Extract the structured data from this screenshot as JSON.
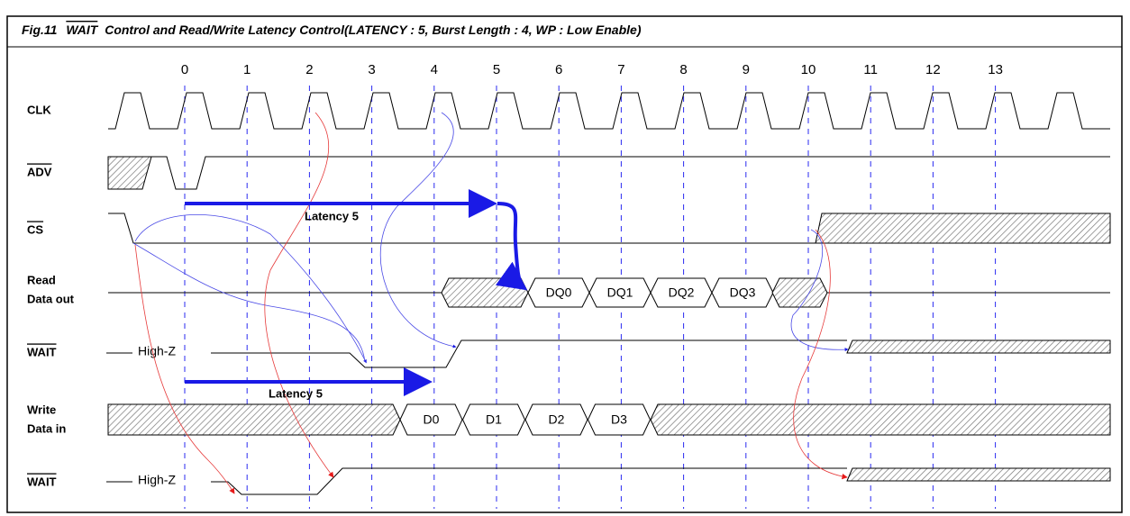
{
  "title": {
    "prefix": "Fig.11",
    "signal": "WAIT",
    "text": "Control and Read/Write Latency Control(LATENCY : 5, Burst Length : 4, WP : Low Enable)"
  },
  "cycles": [
    "0",
    "1",
    "2",
    "3",
    "4",
    "5",
    "6",
    "7",
    "8",
    "9",
    "10",
    "11",
    "12",
    "13"
  ],
  "signals": [
    {
      "label": "CLK"
    },
    {
      "label": "ADV"
    },
    {
      "label": "CS"
    },
    {
      "label": [
        "Read",
        "Data out"
      ]
    },
    {
      "label": "WAIT",
      "note": "High-Z"
    },
    {
      "label": [
        "Write",
        "Data in"
      ]
    },
    {
      "label": "WAIT",
      "note": "High-Z"
    }
  ],
  "read_data": [
    "DQ0",
    "DQ1",
    "DQ2",
    "DQ3"
  ],
  "write_data": [
    "D0",
    "D1",
    "D2",
    "D3"
  ],
  "latency_labels": [
    "Latency 5",
    "Latency 5"
  ]
}
